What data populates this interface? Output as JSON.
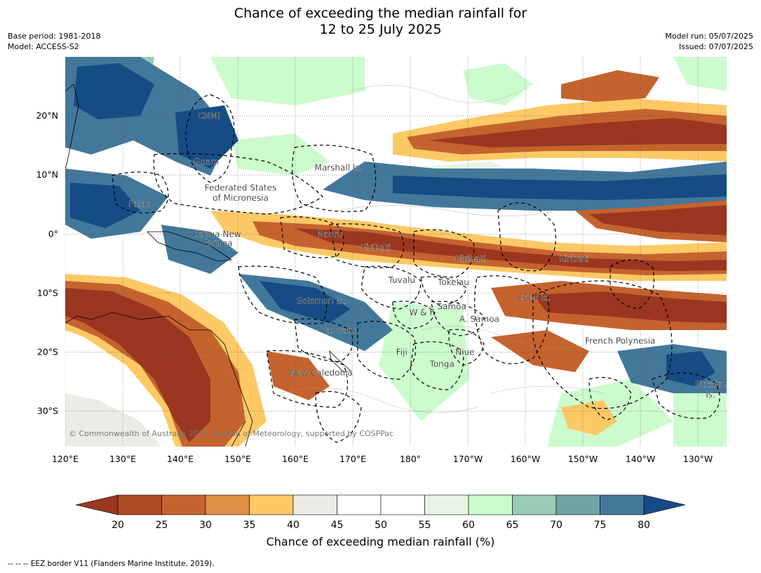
{
  "header": {
    "title_line1": "Chance of exceeding the median rainfall for",
    "title_line2": "12 to 25 July 2025",
    "base_period": "Base period: 1981-2018",
    "model": "Model: ACCESS-S2",
    "model_run": "Model run: 05/07/2025",
    "issued": "Issued: 07/07/2025"
  },
  "map": {
    "lon_range": [
      120,
      235
    ],
    "lat_range": [
      -36,
      30
    ],
    "lon_ticks": [
      {
        "lon": 120,
        "label": "120°E"
      },
      {
        "lon": 130,
        "label": "130°E"
      },
      {
        "lon": 140,
        "label": "140°E"
      },
      {
        "lon": 150,
        "label": "150°E"
      },
      {
        "lon": 160,
        "label": "160°E"
      },
      {
        "lon": 170,
        "label": "170°E"
      },
      {
        "lon": 180,
        "label": "180°"
      },
      {
        "lon": 190,
        "label": "170°W"
      },
      {
        "lon": 200,
        "label": "160°W"
      },
      {
        "lon": 210,
        "label": "150°W"
      },
      {
        "lon": 220,
        "label": "140°W"
      },
      {
        "lon": 230,
        "label": "130°W"
      }
    ],
    "lat_ticks": [
      {
        "lat": 20,
        "label": "20°N"
      },
      {
        "lat": 10,
        "label": "10°N"
      },
      {
        "lat": 0,
        "label": "0°"
      },
      {
        "lat": -10,
        "label": "10°S"
      },
      {
        "lat": -20,
        "label": "20°S"
      },
      {
        "lat": -30,
        "label": "30°S"
      }
    ],
    "copyright": "© Commonwealth of Australia 2025, Bureau of Meteorology, supported by COSPPac",
    "places": [
      {
        "name": "CNMI",
        "lon": 145,
        "lat": 20
      },
      {
        "name": "Guam",
        "lon": 144.5,
        "lat": 12.2
      },
      {
        "name": "Marshall Is.",
        "lon": 167.5,
        "lat": 11.2
      },
      {
        "name": "Federated States",
        "lon": 150.5,
        "lat": 7.8
      },
      {
        "name": "of Micronesia",
        "lon": 150.5,
        "lat": 6.1
      },
      {
        "name": "Palau",
        "lon": 133,
        "lat": 5.1
      },
      {
        "name": "Papua New",
        "lon": 146.5,
        "lat": 0
      },
      {
        "name": "Guinea",
        "lon": 146.5,
        "lat": -1.6
      },
      {
        "name": "Nauru",
        "lon": 166,
        "lat": 0
      },
      {
        "name": "Kiribati",
        "lon": 174,
        "lat": -2.3
      },
      {
        "name": "Kiribati",
        "lon": 190.5,
        "lat": -4.2
      },
      {
        "name": "Kiribati",
        "lon": 208.5,
        "lat": -4.2
      },
      {
        "name": "Tuvalu",
        "lon": 178.5,
        "lat": -7.8
      },
      {
        "name": "Tokelau",
        "lon": 187.5,
        "lat": -8.2
      },
      {
        "name": "Solomon Is.",
        "lon": 164.5,
        "lat": -11.3
      },
      {
        "name": "Cook Is.",
        "lon": 201.5,
        "lat": -10.8
      },
      {
        "name": "Samoa",
        "lon": 187.2,
        "lat": -12.3
      },
      {
        "name": "W & F",
        "lon": 182,
        "lat": -13.3
      },
      {
        "name": "A. Samoa",
        "lon": 192,
        "lat": -14.4
      },
      {
        "name": "Vanuatu",
        "lon": 167.5,
        "lat": -16.3
      },
      {
        "name": "French Polynesia",
        "lon": 216.5,
        "lat": -18.1
      },
      {
        "name": "Fiji",
        "lon": 178.5,
        "lat": -20
      },
      {
        "name": "Niue",
        "lon": 189.5,
        "lat": -20
      },
      {
        "name": "Tonga",
        "lon": 185.5,
        "lat": -22
      },
      {
        "name": "New Caledonia",
        "lon": 164.5,
        "lat": -23.5
      },
      {
        "name": "Pitcairn",
        "lon": 232.2,
        "lat": -25.5
      },
      {
        "name": "Is.",
        "lon": 232.2,
        "lat": -27.2
      }
    ]
  },
  "colorbar": {
    "ticks": [
      "20",
      "25",
      "30",
      "35",
      "40",
      "45",
      "50",
      "55",
      "60",
      "65",
      "70",
      "75",
      "80"
    ],
    "colors": [
      "#ad4a24",
      "#c5632e",
      "#df8f44",
      "#fcc965",
      "#ecebe5",
      "#ffffff",
      "#ffffff",
      "#e8f5e4",
      "#ccfbcd",
      "#99cbb5",
      "#6fa4a6",
      "#43789a"
    ],
    "low_extend_color": "#9b3621",
    "high_extend_color": "#164c85",
    "label": "Chance of exceeding median rainfall (%)"
  },
  "footnote": "--  --  -- EEZ border V11 (Flanders Marine Institute, 2019)."
}
